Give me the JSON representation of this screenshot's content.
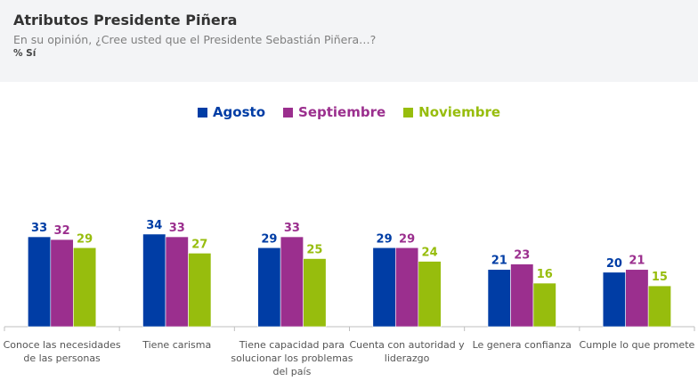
{
  "header": {
    "title": "Atributos Presidente Piñera",
    "subtitle": "En su opinión, ¿Cree usted que el Presidente Sebastián Piñera…?",
    "unit": "% Sí"
  },
  "colors": {
    "Agosto": "#003da5",
    "Septiembre": "#9b2f8e",
    "Noviembre": "#97bd0d"
  },
  "chart_data": {
    "type": "bar",
    "title": "Atributos Presidente Piñera",
    "xlabel": "",
    "ylabel": "% Sí",
    "ylim": [
      0,
      40
    ],
    "grid": false,
    "legend_position": "top-center",
    "categories": [
      [
        "Conoce las necesidades",
        "de las personas"
      ],
      [
        "Tiene carisma"
      ],
      [
        "Tiene capacidad para",
        "solucionar los problemas",
        "del país"
      ],
      [
        "Cuenta con autoridad y",
        "liderazgo"
      ],
      [
        "Le genera confianza"
      ],
      [
        "Cumple lo que promete"
      ]
    ],
    "series": [
      {
        "name": "Agosto",
        "values": [
          33,
          34,
          29,
          29,
          21,
          20
        ]
      },
      {
        "name": "Septiembre",
        "values": [
          32,
          33,
          33,
          29,
          23,
          21
        ]
      },
      {
        "name": "Noviembre",
        "values": [
          29,
          27,
          25,
          24,
          16,
          15
        ]
      }
    ]
  }
}
